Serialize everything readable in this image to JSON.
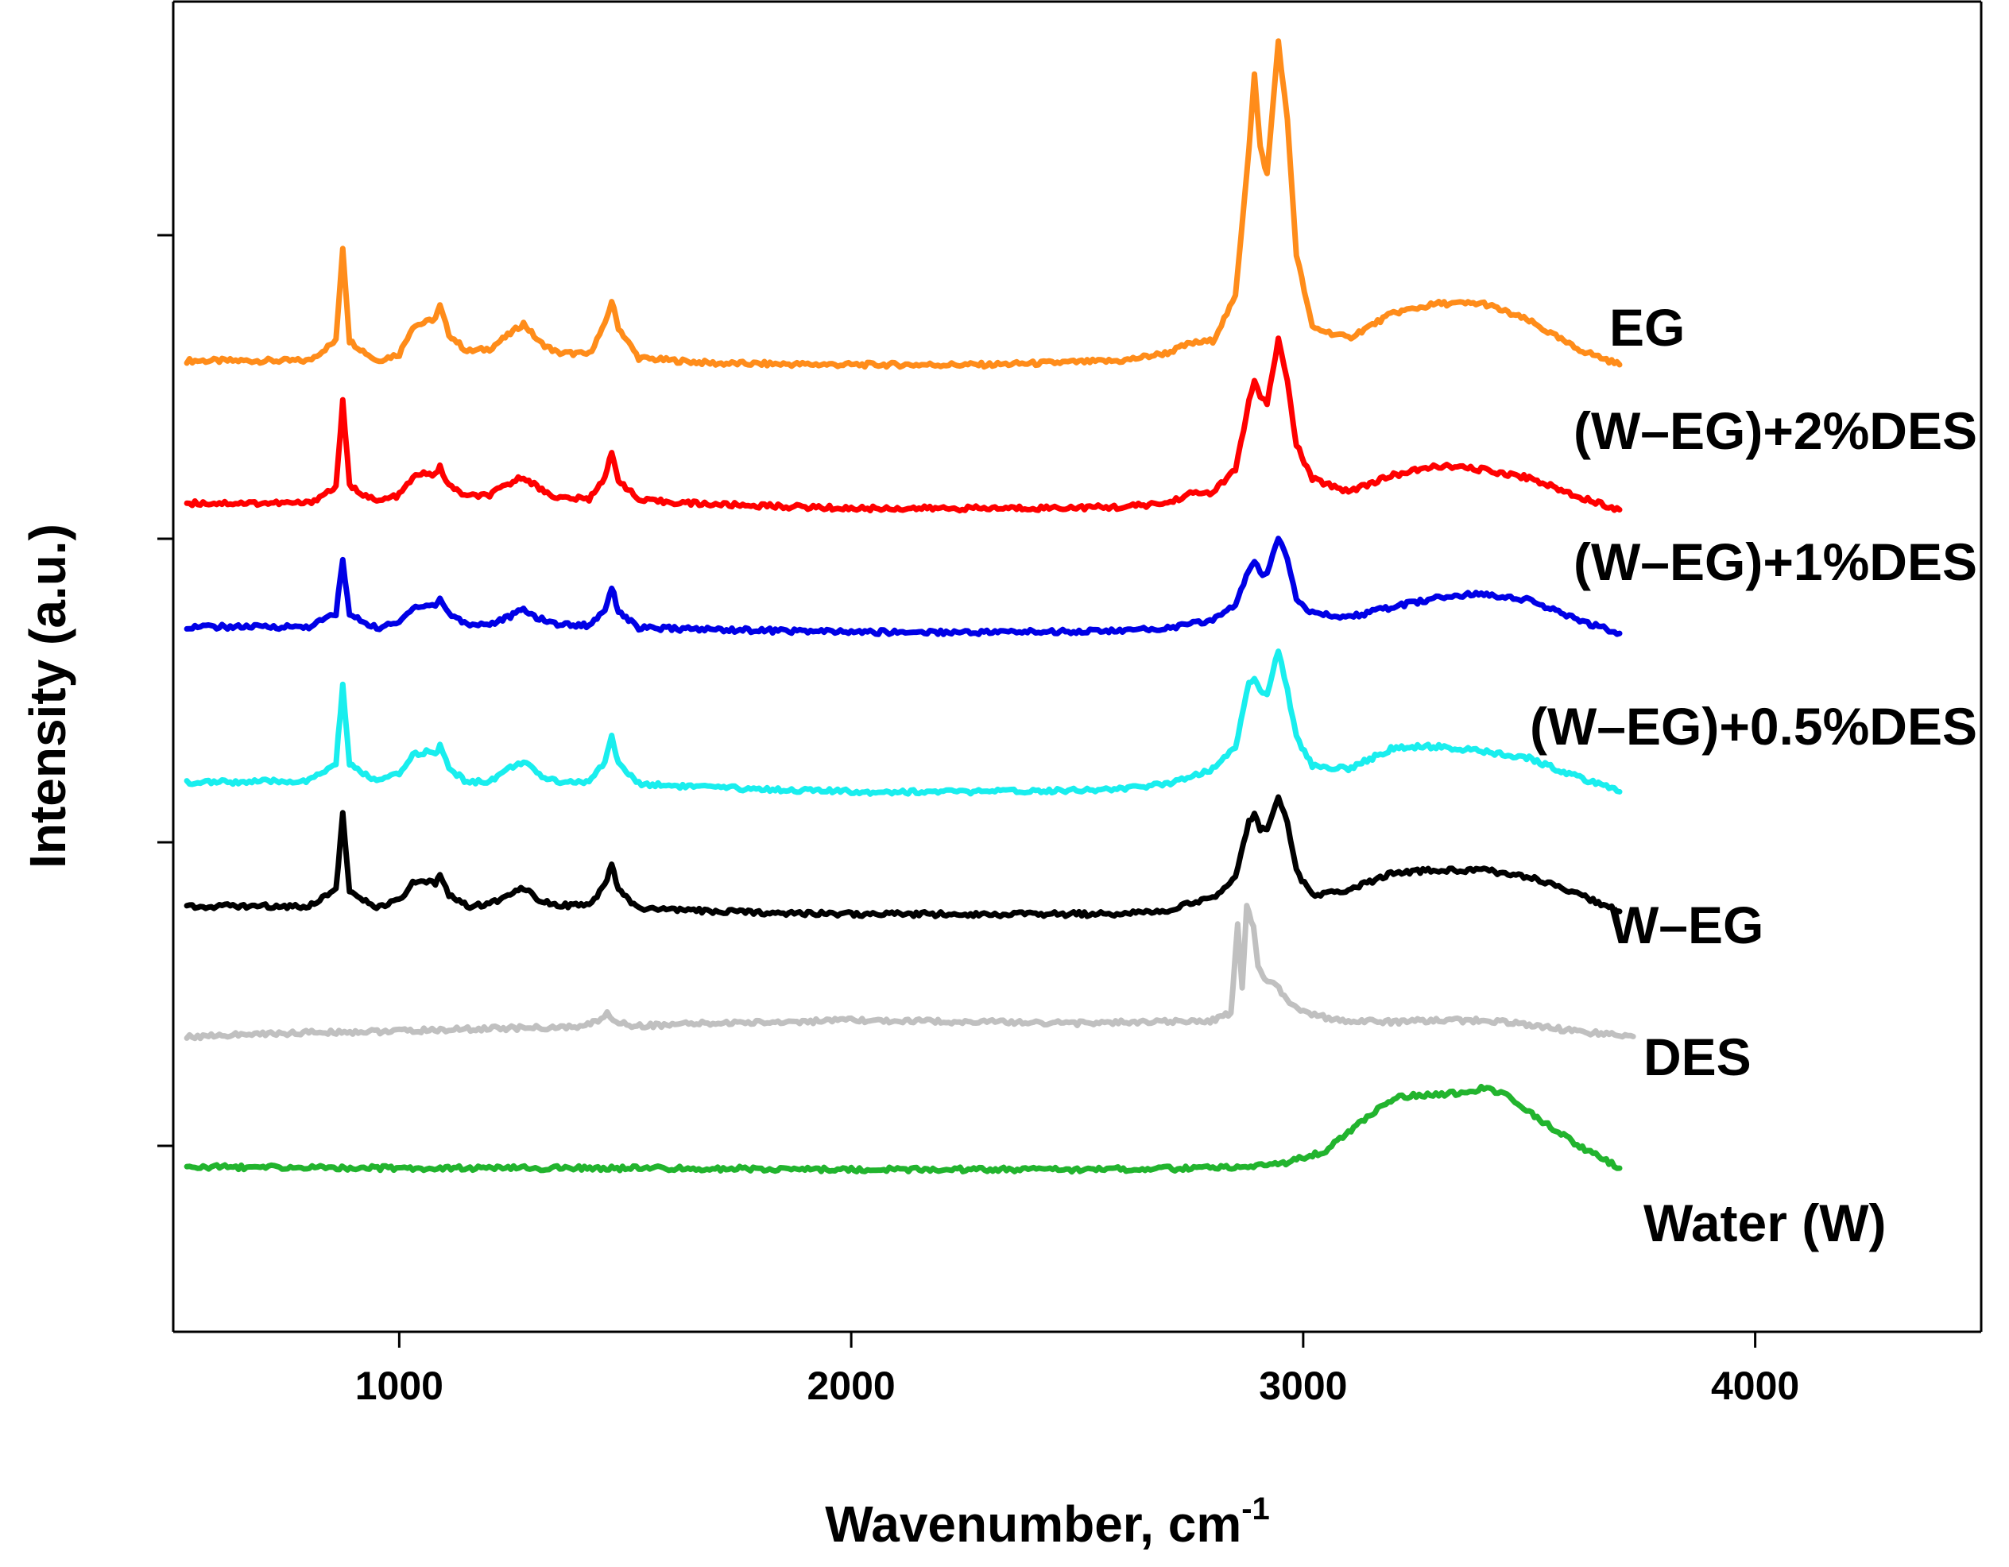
{
  "chart_data": {
    "type": "line",
    "title": "",
    "xlabel": "Wavenumber, cm",
    "xlabel_superscript": "-1",
    "ylabel": "Intensity (a.u.)",
    "xlim": [
      500,
      4500
    ],
    "ylim": [
      0,
      100
    ],
    "xticks": [
      1000,
      2000,
      3000,
      4000
    ],
    "grid": false,
    "legend": "inline labels at right end of each trace",
    "series": [
      {
        "name": "EG",
        "color": "#FF8C1A",
        "baseline": 73.0,
        "x": [
          530,
          800,
          860,
          875,
          890,
          950,
          1000,
          1030,
          1060,
          1080,
          1090,
          1110,
          1150,
          1200,
          1240,
          1275,
          1310,
          1350,
          1420,
          1455,
          1470,
          1485,
          1530,
          1700,
          2000,
          2300,
          2600,
          2700,
          2750,
          2800,
          2850,
          2880,
          2892,
          2905,
          2920,
          2945,
          2965,
          2985,
          3020,
          3100,
          3200,
          3300,
          3400,
          3500,
          3600,
          3700
        ],
        "y": [
          73.0,
          73.0,
          74.5,
          81.5,
          74.5,
          73.0,
          73.5,
          75.6,
          75.9,
          76.2,
          77.1,
          75.0,
          73.7,
          73.9,
          74.9,
          75.8,
          74.4,
          73.6,
          73.5,
          75.7,
          77.5,
          75.5,
          73.2,
          72.8,
          72.7,
          72.7,
          73.0,
          73.6,
          74.3,
          74.5,
          77.8,
          89.0,
          94.5,
          89.0,
          87.0,
          97.0,
          91.0,
          81.0,
          75.5,
          74.7,
          76.6,
          77.3,
          77.3,
          76.0,
          74.0,
          72.7
        ]
      },
      {
        "name": "(W–EG)+2%DES",
        "color": "#FF0000",
        "baseline": 62.3,
        "x": [
          530,
          800,
          860,
          875,
          890,
          950,
          1000,
          1030,
          1060,
          1080,
          1090,
          1110,
          1150,
          1200,
          1240,
          1275,
          1310,
          1350,
          1420,
          1455,
          1470,
          1485,
          1530,
          1700,
          2000,
          2300,
          2600,
          2700,
          2750,
          2800,
          2850,
          2880,
          2892,
          2905,
          2920,
          2945,
          2965,
          2985,
          3020,
          3100,
          3200,
          3300,
          3400,
          3500,
          3600,
          3700
        ],
        "y": [
          62.3,
          62.3,
          63.5,
          69.9,
          63.6,
          62.4,
          62.9,
          64.2,
          64.6,
          64.4,
          65.0,
          63.6,
          62.8,
          62.9,
          63.7,
          64.3,
          63.4,
          62.7,
          62.6,
          64.3,
          66.0,
          64.1,
          62.5,
          62.2,
          61.9,
          61.9,
          62.0,
          62.3,
          63.0,
          63.1,
          64.8,
          69.9,
          71.5,
          70.2,
          69.8,
          74.6,
          71.4,
          66.7,
          64.1,
          63.2,
          64.4,
          65.1,
          64.8,
          64.2,
          62.9,
          61.8
        ]
      },
      {
        "name": "(W–EG)+1%DES",
        "color": "#0000E6",
        "baseline": 53.0,
        "x": [
          530,
          800,
          860,
          875,
          890,
          950,
          1000,
          1030,
          1060,
          1080,
          1090,
          1110,
          1150,
          1200,
          1240,
          1275,
          1310,
          1350,
          1420,
          1455,
          1470,
          1485,
          1530,
          1700,
          2000,
          2300,
          2600,
          2700,
          2750,
          2800,
          2850,
          2880,
          2892,
          2905,
          2920,
          2945,
          2965,
          2985,
          3020,
          3100,
          3200,
          3300,
          3400,
          3500,
          3600,
          3700
        ],
        "y": [
          53.0,
          53.0,
          54.0,
          58.0,
          53.9,
          52.9,
          53.3,
          54.5,
          54.6,
          54.6,
          55.1,
          54.0,
          53.2,
          53.2,
          53.7,
          54.3,
          53.6,
          53.2,
          53.1,
          54.3,
          56.0,
          54.2,
          52.9,
          52.8,
          52.6,
          52.6,
          52.7,
          52.9,
          53.2,
          53.5,
          54.7,
          57.2,
          58.0,
          57.0,
          57.0,
          59.8,
          58.2,
          55.2,
          54.0,
          53.7,
          54.5,
          55.2,
          55.5,
          55.0,
          53.6,
          52.5
        ]
      },
      {
        "name": "(W–EG)+0.5%DES",
        "color": "#19EEEE",
        "baseline": 41.3,
        "x": [
          530,
          800,
          860,
          875,
          890,
          950,
          1000,
          1030,
          1060,
          1080,
          1090,
          1110,
          1150,
          1200,
          1240,
          1275,
          1310,
          1350,
          1420,
          1455,
          1470,
          1485,
          1530,
          1700,
          2000,
          2300,
          2600,
          2700,
          2750,
          2800,
          2850,
          2880,
          2892,
          2905,
          2920,
          2945,
          2965,
          2985,
          3020,
          3100,
          3200,
          3300,
          3400,
          3500,
          3600,
          3700
        ],
        "y": [
          41.3,
          41.4,
          42.7,
          48.6,
          42.6,
          41.4,
          41.9,
          43.4,
          43.6,
          43.4,
          44.0,
          42.4,
          41.3,
          41.4,
          42.3,
          42.9,
          41.8,
          41.4,
          41.3,
          42.9,
          44.8,
          42.7,
          41.2,
          40.9,
          40.6,
          40.6,
          40.8,
          41.2,
          41.8,
          42.3,
          44.0,
          48.8,
          49.2,
          48.1,
          47.9,
          51.2,
          48.2,
          44.7,
          42.6,
          42.3,
          43.9,
          44.0,
          43.6,
          43.1,
          41.8,
          40.6
        ]
      },
      {
        "name": "W–EG",
        "color": "#000000",
        "baseline": 32.0,
        "x": [
          530,
          800,
          860,
          875,
          890,
          950,
          1000,
          1030,
          1060,
          1080,
          1090,
          1110,
          1150,
          1200,
          1240,
          1275,
          1310,
          1350,
          1420,
          1455,
          1470,
          1485,
          1530,
          1700,
          2000,
          2300,
          2600,
          2700,
          2750,
          2800,
          2850,
          2880,
          2892,
          2905,
          2920,
          2945,
          2965,
          2985,
          3020,
          3100,
          3200,
          3300,
          3400,
          3500,
          3600,
          3700
        ],
        "y": [
          32.0,
          32.0,
          33.3,
          38.9,
          33.0,
          31.9,
          32.4,
          33.7,
          33.8,
          33.7,
          34.4,
          32.9,
          32.0,
          32.1,
          32.9,
          33.4,
          32.5,
          32.1,
          32.0,
          33.5,
          35.2,
          33.2,
          31.8,
          31.6,
          31.4,
          31.4,
          31.4,
          31.7,
          32.2,
          32.6,
          34.3,
          38.3,
          39.0,
          37.8,
          37.7,
          40.2,
          38.3,
          34.6,
          32.8,
          33.2,
          34.5,
          34.7,
          34.7,
          34.2,
          33.0,
          31.6
        ]
      },
      {
        "name": "DES",
        "color": "#C0C0C0",
        "baseline": 22.2,
        "x": [
          530,
          800,
          1000,
          1200,
          1400,
          1440,
          1460,
          1480,
          1520,
          1700,
          2000,
          2300,
          2500,
          2700,
          2800,
          2840,
          2855,
          2865,
          2875,
          2890,
          2900,
          2915,
          2940,
          2970,
          3000,
          3050,
          3100,
          3200,
          3300,
          3400,
          3500,
          3600,
          3730
        ],
        "y": [
          22.2,
          22.5,
          22.6,
          22.8,
          22.9,
          23.4,
          23.9,
          23.3,
          23.0,
          23.2,
          23.4,
          23.3,
          23.2,
          23.3,
          23.4,
          24.0,
          30.5,
          26.0,
          31.9,
          30.5,
          27.5,
          26.5,
          26.0,
          24.8,
          24.1,
          23.6,
          23.4,
          23.3,
          23.4,
          23.4,
          23.1,
          22.6,
          22.2
        ]
      },
      {
        "name": "Water (W)",
        "color": "#22B42E",
        "baseline": 12.4,
        "x": [
          530,
          1000,
          1500,
          2000,
          2500,
          2800,
          2950,
          3050,
          3100,
          3200,
          3250,
          3300,
          3350,
          3400,
          3450,
          3500,
          3600,
          3700
        ],
        "y": [
          12.4,
          12.3,
          12.3,
          12.2,
          12.2,
          12.3,
          12.6,
          13.6,
          15.0,
          17.6,
          17.8,
          17.8,
          18.0,
          18.3,
          17.8,
          16.5,
          14.2,
          12.3
        ]
      }
    ],
    "label_texts": [
      "EG",
      "(W–EG)+2%DES",
      "(W–EG)+1%DES",
      "(W–EG)+0.5%DES",
      "W–EG",
      "DES",
      "Water (W)"
    ]
  }
}
